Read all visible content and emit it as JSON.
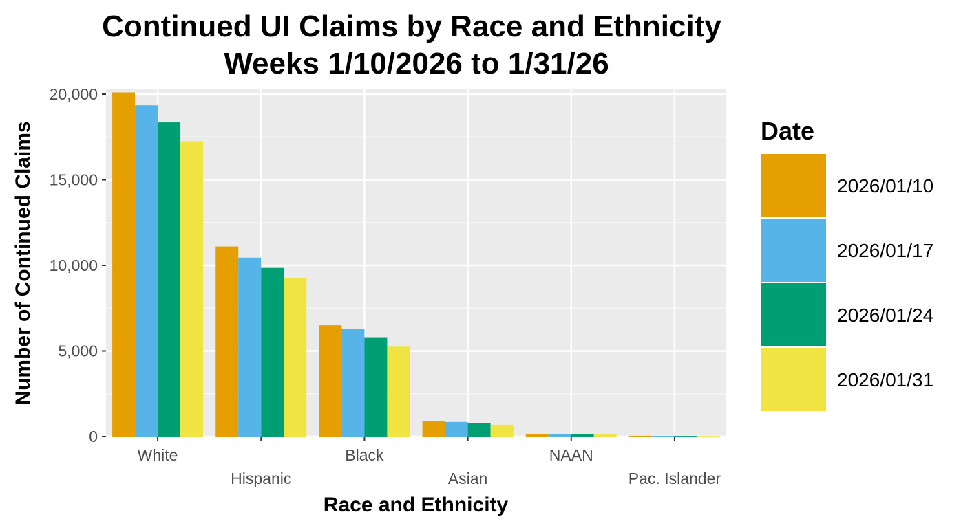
{
  "chart_data": {
    "type": "bar",
    "title_line1": "Continued UI Claims by Race and Ethnicity",
    "title_line2": "Weeks 1/10/2026 to 1/31/26",
    "xlabel": "Race and Ethnicity",
    "ylabel": "Number of Continued Claims",
    "ylim": [
      0,
      20000
    ],
    "yticks": [
      0,
      5000,
      10000,
      15000,
      20000
    ],
    "ytick_labels": [
      "0",
      "5,000",
      "10,000",
      "15,000",
      "20,000"
    ],
    "categories": [
      "White",
      "Hispanic",
      "Black",
      "Asian",
      "NAAN",
      "Pac. Islander"
    ],
    "legend_title": "Date",
    "legend_position": "right",
    "grid": true,
    "series": [
      {
        "name": "2026/01/10",
        "color": "#E69F00",
        "values": [
          20100,
          11100,
          6500,
          920,
          130,
          45
        ]
      },
      {
        "name": "2026/01/17",
        "color": "#56B4E9",
        "values": [
          19350,
          10450,
          6300,
          850,
          125,
          40
        ]
      },
      {
        "name": "2026/01/24",
        "color": "#009E73",
        "values": [
          18350,
          9850,
          5800,
          770,
          120,
          38
        ]
      },
      {
        "name": "2026/01/31",
        "color": "#F0E442",
        "values": [
          17250,
          9250,
          5250,
          690,
          115,
          35
        ]
      }
    ]
  }
}
